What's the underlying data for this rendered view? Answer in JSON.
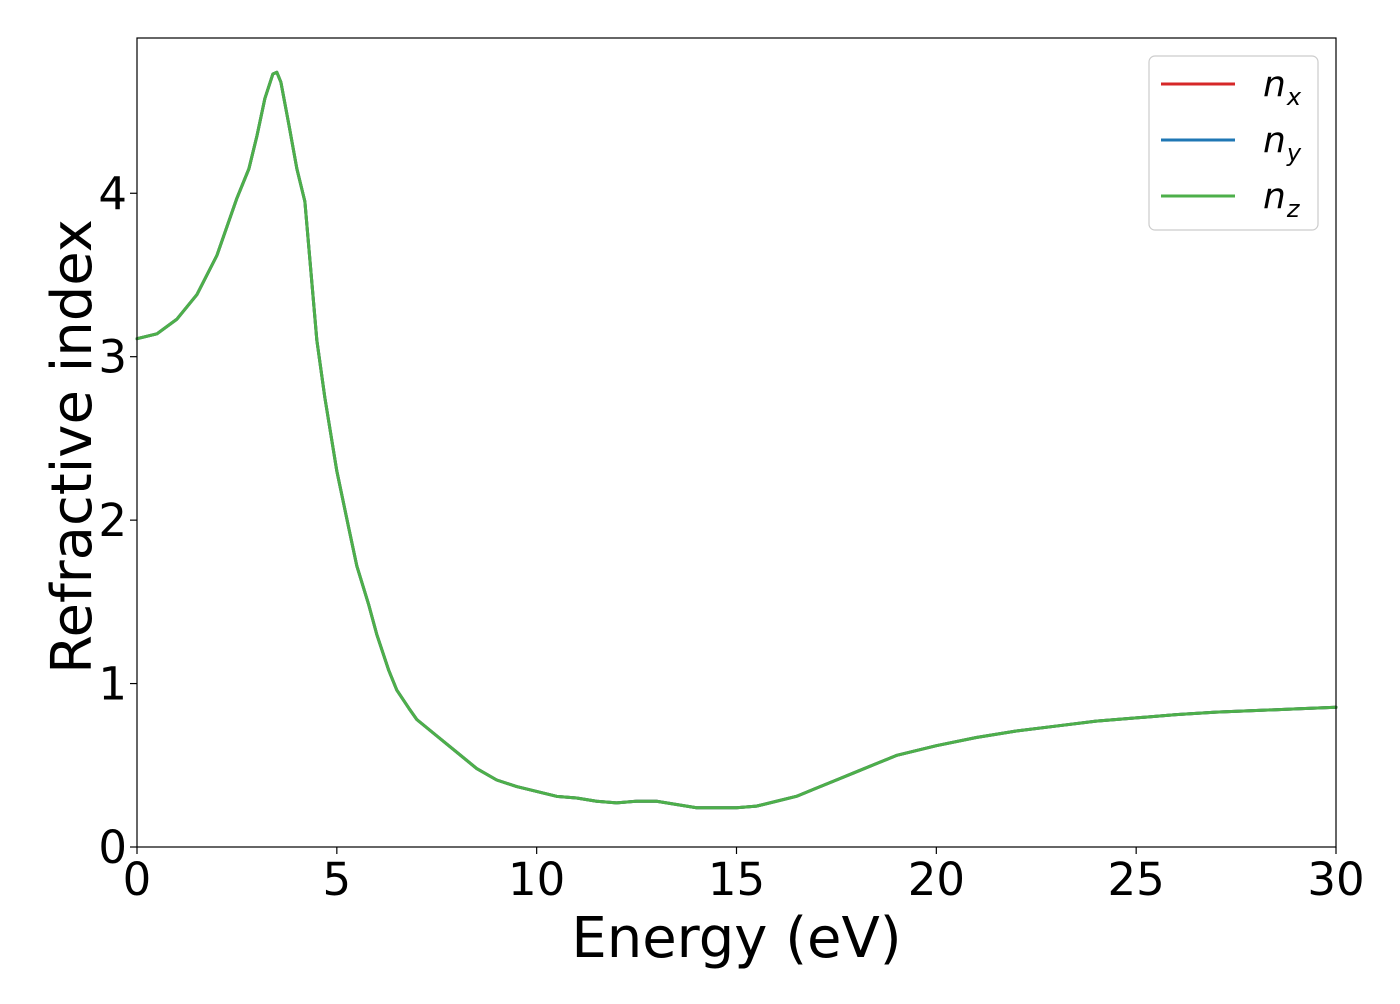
{
  "chart_data": {
    "type": "line",
    "title": "",
    "xlabel": "Energy (eV)",
    "ylabel": "Refractive index",
    "xlim": [
      0,
      30
    ],
    "ylim": [
      0,
      4.95
    ],
    "xticks": [
      0,
      5,
      10,
      15,
      20,
      25,
      30
    ],
    "yticks": [
      0,
      1,
      2,
      3,
      4
    ],
    "grid": false,
    "legend": {
      "placement": "top-right",
      "entries": [
        {
          "base": "n",
          "sub": "x",
          "color": "#d62728"
        },
        {
          "base": "n",
          "sub": "y",
          "color": "#1f77b4"
        },
        {
          "base": "n",
          "sub": "z",
          "color": "#4daf4a"
        }
      ]
    },
    "x": [
      0,
      0.5,
      1.0,
      1.5,
      2.0,
      2.5,
      2.8,
      3.0,
      3.2,
      3.4,
      3.5,
      3.6,
      3.8,
      4.0,
      4.2,
      4.5,
      4.7,
      5.0,
      5.3,
      5.5,
      5.8,
      6.0,
      6.3,
      6.5,
      6.8,
      7.0,
      7.5,
      8.0,
      8.5,
      9.0,
      9.5,
      10.0,
      10.5,
      11.0,
      11.5,
      12.0,
      12.5,
      13.0,
      13.5,
      14.0,
      14.5,
      15.0,
      15.5,
      16.0,
      16.5,
      17.0,
      17.5,
      18.0,
      18.5,
      19.0,
      19.5,
      20.0,
      21.0,
      22.0,
      23.0,
      24.0,
      25.0,
      26.0,
      27.0,
      28.0,
      29.0,
      30.0
    ],
    "series": [
      {
        "name": "n_x",
        "color": "#d62728",
        "values": [
          3.11,
          3.14,
          3.23,
          3.38,
          3.62,
          3.97,
          4.15,
          4.35,
          4.58,
          4.73,
          4.74,
          4.68,
          4.42,
          4.15,
          3.95,
          3.1,
          2.75,
          2.3,
          1.95,
          1.72,
          1.48,
          1.3,
          1.08,
          0.96,
          0.85,
          0.78,
          0.68,
          0.58,
          0.48,
          0.41,
          0.37,
          0.34,
          0.31,
          0.3,
          0.28,
          0.27,
          0.28,
          0.28,
          0.26,
          0.24,
          0.24,
          0.24,
          0.25,
          0.28,
          0.31,
          0.36,
          0.41,
          0.46,
          0.51,
          0.56,
          0.59,
          0.62,
          0.67,
          0.71,
          0.74,
          0.77,
          0.79,
          0.81,
          0.825,
          0.835,
          0.845,
          0.855
        ]
      },
      {
        "name": "n_y",
        "color": "#1f77b4",
        "values": [
          3.11,
          3.14,
          3.23,
          3.38,
          3.62,
          3.97,
          4.15,
          4.35,
          4.58,
          4.73,
          4.74,
          4.68,
          4.42,
          4.15,
          3.95,
          3.1,
          2.75,
          2.3,
          1.95,
          1.72,
          1.48,
          1.3,
          1.08,
          0.96,
          0.85,
          0.78,
          0.68,
          0.58,
          0.48,
          0.41,
          0.37,
          0.34,
          0.31,
          0.3,
          0.28,
          0.27,
          0.28,
          0.28,
          0.26,
          0.24,
          0.24,
          0.24,
          0.25,
          0.28,
          0.31,
          0.36,
          0.41,
          0.46,
          0.51,
          0.56,
          0.59,
          0.62,
          0.67,
          0.71,
          0.74,
          0.77,
          0.79,
          0.81,
          0.825,
          0.835,
          0.845,
          0.855
        ]
      },
      {
        "name": "n_z",
        "color": "#4daf4a",
        "values": [
          3.11,
          3.14,
          3.23,
          3.38,
          3.62,
          3.97,
          4.15,
          4.35,
          4.58,
          4.73,
          4.74,
          4.68,
          4.42,
          4.15,
          3.95,
          3.1,
          2.75,
          2.3,
          1.95,
          1.72,
          1.48,
          1.3,
          1.08,
          0.96,
          0.85,
          0.78,
          0.68,
          0.58,
          0.48,
          0.41,
          0.37,
          0.34,
          0.31,
          0.3,
          0.28,
          0.27,
          0.28,
          0.28,
          0.26,
          0.24,
          0.24,
          0.24,
          0.25,
          0.28,
          0.31,
          0.36,
          0.41,
          0.46,
          0.51,
          0.56,
          0.59,
          0.62,
          0.67,
          0.71,
          0.74,
          0.77,
          0.79,
          0.81,
          0.825,
          0.835,
          0.845,
          0.855
        ]
      }
    ]
  }
}
